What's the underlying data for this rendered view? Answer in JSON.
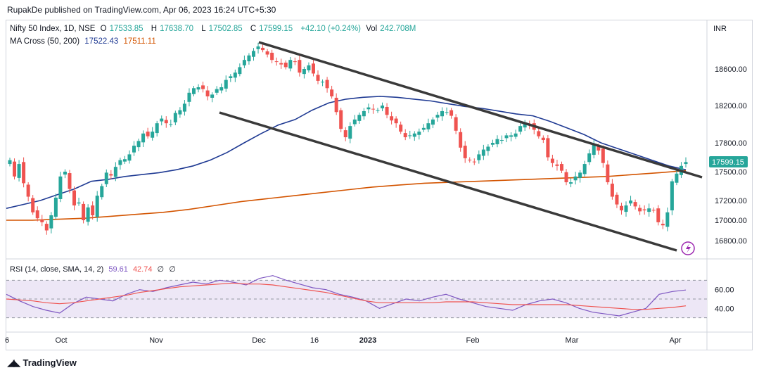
{
  "header": {
    "publish_text": "RupakDe published on TradingView.com, Apr 06, 2023 16:24 UTC+5:30"
  },
  "legend": {
    "symbol": "Nifty 50 Index, 1D, NSE",
    "open_label": "O",
    "open": "17533.85",
    "high_label": "H",
    "high": "17638.70",
    "low_label": "L",
    "low": "17502.85",
    "close_label": "C",
    "close": "17599.15",
    "change": "+42.10 (+0.24%)",
    "vol_label": "Vol",
    "vol": "242.708M",
    "ma_label": "MA Cross (50, 200)",
    "ma50": "17522.43",
    "ma200": "17511.11",
    "rsi_label": "RSI (14, close, SMA, 14, 2)",
    "rsi_value": "59.61",
    "rsi_sma": "42.74",
    "rsi_extra1": "∅",
    "rsi_extra2": "∅"
  },
  "axis": {
    "currency": "INR",
    "price_ticks": [
      "18600.00",
      "18200.00",
      "17800.00",
      "17500.00",
      "17200.00",
      "17000.00",
      "16800.00"
    ],
    "last_price_label": "17599.15",
    "rsi_ticks": [
      "60.00",
      "40.00"
    ],
    "x_ticks": [
      "6",
      "Oct",
      "Nov",
      "Dec",
      "16",
      "2023",
      "Feb",
      "Mar",
      "Apr"
    ]
  },
  "footer": {
    "brand": "TradingView"
  },
  "colors": {
    "up": "#26a69a",
    "down": "#ef5350",
    "ma50": "#1f3a93",
    "ma200": "#d35400",
    "rsi": "#7e57c2",
    "rsi_sma": "#ef5350",
    "trendline": "#3a3a3a",
    "rsi_band": "#ede7f6"
  },
  "chart_data": {
    "type": "candlestick",
    "title": "Nifty 50 Index, 1D, NSE",
    "ylabel": "INR",
    "ylim": [
      16700,
      18800
    ],
    "price_ticks": [
      16800,
      17000,
      17200,
      17500,
      17800,
      18200,
      18600
    ],
    "x_ticks": [
      "6",
      "Oct",
      "Nov",
      "Dec",
      "16",
      "2023",
      "Feb",
      "Mar",
      "Apr"
    ],
    "candles_close": [
      17620,
      17450,
      17580,
      17380,
      17240,
      17080,
      17020,
      16980,
      16900,
      17050,
      17230,
      17450,
      17500,
      17320,
      17150,
      17180,
      17000,
      17130,
      17050,
      17250,
      17350,
      17490,
      17460,
      17550,
      17620,
      17630,
      17680,
      17770,
      17820,
      17900,
      17870,
      17920,
      18010,
      18060,
      18010,
      18000,
      18120,
      18150,
      18220,
      18340,
      18390,
      18400,
      18380,
      18300,
      18320,
      18380,
      18400,
      18480,
      18520,
      18560,
      18620,
      18700,
      18750,
      18800,
      18850,
      18810,
      18760,
      18700,
      18680,
      18650,
      18620,
      18700,
      18680,
      18560,
      18600,
      18640,
      18550,
      18470,
      18460,
      18390,
      18300,
      18130,
      17950,
      17860,
      17980,
      18050,
      18100,
      18140,
      18180,
      18160,
      18150,
      18200,
      18100,
      18040,
      18010,
      17920,
      17860,
      17880,
      17900,
      17920,
      17960,
      18010,
      18050,
      18100,
      18140,
      18130,
      18090,
      17930,
      17750,
      17640,
      17620,
      17600,
      17680,
      17730,
      17760,
      17800,
      17840,
      17830,
      17880,
      17880,
      17900,
      17980,
      18020,
      17990,
      17940,
      17870,
      17830,
      17650,
      17590,
      17560,
      17510,
      17390,
      17390,
      17450,
      17490,
      17580,
      17690,
      17780,
      17720,
      17590,
      17390,
      17240,
      17160,
      17100,
      17150,
      17200,
      17140,
      17090,
      17100,
      17120,
      17100,
      16980,
      16950,
      17080,
      17400,
      17480,
      17560,
      17600
    ],
    "ma50_approx": [
      17120,
      17160,
      17200,
      17260,
      17320,
      17400,
      17420,
      17450,
      17470,
      17490,
      17520,
      17560,
      17620,
      17700,
      17800,
      17900,
      17990,
      18050,
      18150,
      18230,
      18270,
      18290,
      18300,
      18290,
      18270,
      18250,
      18220,
      18190,
      18170,
      18140,
      18110,
      18090,
      18030,
      17960,
      17890,
      17800,
      17740,
      17680,
      17620,
      17560,
      17520
    ],
    "ma200_approx": [
      17000,
      17000,
      17010,
      17020,
      17040,
      17060,
      17080,
      17110,
      17150,
      17190,
      17220,
      17250,
      17280,
      17310,
      17340,
      17360,
      17380,
      17390,
      17400,
      17410,
      17420,
      17430,
      17440,
      17450,
      17470,
      17490,
      17511
    ],
    "rsi_values": [
      55,
      48,
      42,
      38,
      35,
      45,
      52,
      50,
      48,
      55,
      60,
      58,
      62,
      65,
      68,
      66,
      70,
      68,
      65,
      72,
      75,
      70,
      66,
      62,
      60,
      55,
      52,
      48,
      40,
      45,
      50,
      48,
      52,
      55,
      50,
      46,
      42,
      40,
      38,
      44,
      48,
      50,
      46,
      40,
      36,
      34,
      32,
      36,
      40,
      55,
      58,
      59.61
    ],
    "rsi_sma_values": [
      50,
      49,
      48,
      46,
      45,
      46,
      48,
      50,
      52,
      54,
      57,
      59,
      61,
      63,
      64,
      65,
      66,
      67,
      66,
      66,
      65,
      63,
      61,
      59,
      57,
      54,
      51,
      48,
      46,
      46,
      46,
      46,
      46,
      47,
      47,
      47,
      46,
      45,
      44,
      44,
      44,
      44,
      44,
      43,
      42,
      41,
      40,
      39,
      39,
      40,
      41,
      42.74
    ],
    "rsi_ylim": [
      20,
      80
    ],
    "rsi_ticks": [
      40,
      60
    ]
  }
}
